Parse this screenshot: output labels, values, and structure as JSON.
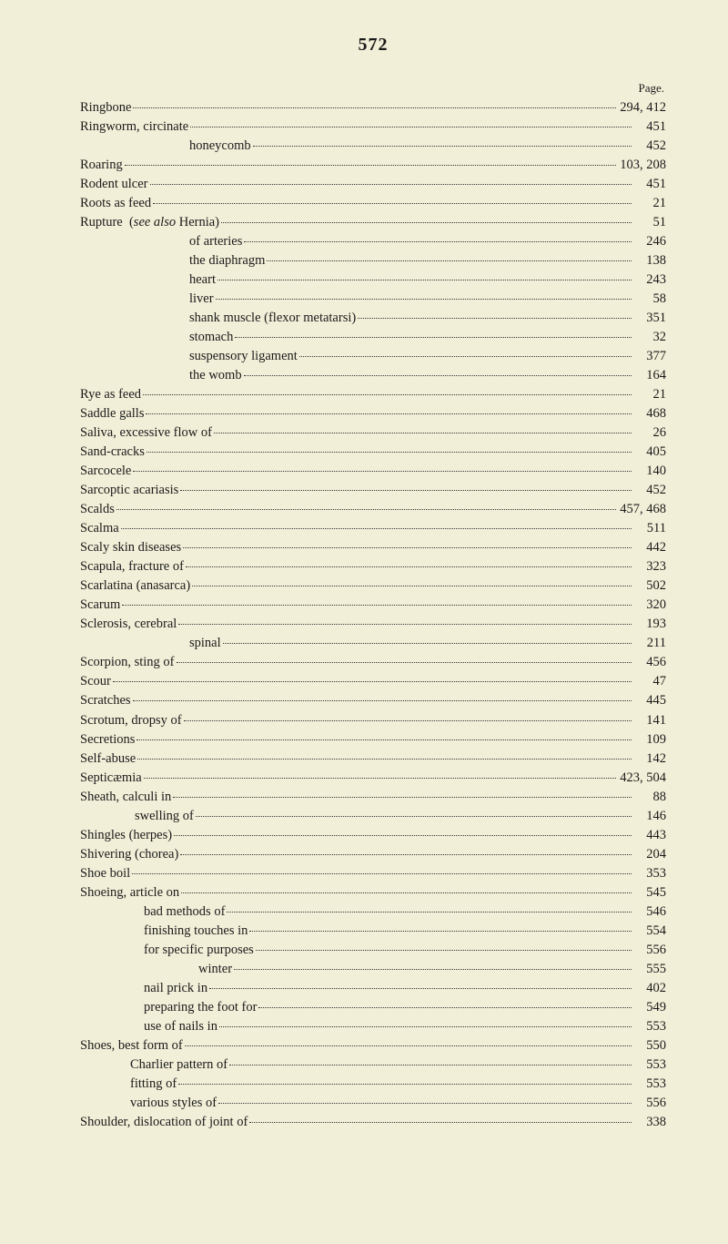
{
  "page_number": "572",
  "page_label": "Page.",
  "background_color": "#f2efd8",
  "text_color": "#1a1a1a",
  "font_family": "Georgia, Times New Roman, serif",
  "base_fontsize": 14.5,
  "entries": [
    {
      "label": "Ringbone",
      "page": "294, 412",
      "indent": 0
    },
    {
      "label": "Ringworm, circinate",
      "page": "451",
      "indent": 0
    },
    {
      "label": "honeycomb",
      "page": "452",
      "indent": 2
    },
    {
      "label": "Roaring",
      "page": "103, 208",
      "indent": 0
    },
    {
      "label": "Rodent ulcer",
      "page": "451",
      "indent": 0
    },
    {
      "label": "Roots as feed",
      "page": "21",
      "indent": 0
    },
    {
      "label": "Rupture  (see also Hernia)",
      "page": "51",
      "indent": 0,
      "italic_segment": "see also"
    },
    {
      "label": "of arteries",
      "page": "246",
      "indent": 2
    },
    {
      "label": "the diaphragm",
      "page": "138",
      "indent": 2
    },
    {
      "label": "heart",
      "page": "243",
      "indent": 2
    },
    {
      "label": "liver",
      "page": "58",
      "indent": 2
    },
    {
      "label": "shank muscle (flexor metatarsi)",
      "page": "351",
      "indent": 2
    },
    {
      "label": "stomach",
      "page": "32",
      "indent": 2
    },
    {
      "label": "suspensory ligament",
      "page": "377",
      "indent": 2
    },
    {
      "label": "the womb",
      "page": "164",
      "indent": 2
    },
    {
      "label": "Rye as feed",
      "page": "21",
      "indent": 0
    },
    {
      "label": "Saddle galls",
      "page": "468",
      "indent": 0
    },
    {
      "label": "Saliva, excessive flow of",
      "page": "26",
      "indent": 0
    },
    {
      "label": "Sand-cracks",
      "page": "405",
      "indent": 0
    },
    {
      "label": "Sarcocele",
      "page": "140",
      "indent": 0
    },
    {
      "label": "Sarcoptic acariasis",
      "page": "452",
      "indent": 0
    },
    {
      "label": "Scalds",
      "page": "457, 468",
      "indent": 0
    },
    {
      "label": "Scalma",
      "page": "511",
      "indent": 0
    },
    {
      "label": "Scaly skin diseases",
      "page": "442",
      "indent": 0
    },
    {
      "label": "Scapula, fracture of",
      "page": "323",
      "indent": 0
    },
    {
      "label": "Scarlatina (anasarca)",
      "page": "502",
      "indent": 0
    },
    {
      "label": "Scarum",
      "page": "320",
      "indent": 0
    },
    {
      "label": "Sclerosis, cerebral",
      "page": "193",
      "indent": 0
    },
    {
      "label": "spinal",
      "page": "211",
      "indent": 2
    },
    {
      "label": "Scorpion, sting of",
      "page": "456",
      "indent": 0
    },
    {
      "label": "Scour",
      "page": "47",
      "indent": 0
    },
    {
      "label": "Scratches",
      "page": "445",
      "indent": 0
    },
    {
      "label": "Scrotum, dropsy of",
      "page": "141",
      "indent": 0
    },
    {
      "label": "Secretions",
      "page": "109",
      "indent": 0
    },
    {
      "label": "Self-abuse",
      "page": "142",
      "indent": 0
    },
    {
      "label": "Septicæmia",
      "page": "423, 504",
      "indent": 0
    },
    {
      "label": "Sheath, calculi in",
      "page": "88",
      "indent": 0
    },
    {
      "label": "swelling of",
      "page": "146",
      "indent": 1
    },
    {
      "label": "Shingles (herpes)",
      "page": "443",
      "indent": 0
    },
    {
      "label": "Shivering (chorea)",
      "page": "204",
      "indent": 0
    },
    {
      "label": "Shoe boil",
      "page": "353",
      "indent": 0
    },
    {
      "label": "Shoeing, article on",
      "page": "545",
      "indent": 0
    },
    {
      "label": "bad methods of",
      "page": "546",
      "indent": "shoeing-1"
    },
    {
      "label": "finishing touches in",
      "page": "554",
      "indent": "shoeing-1"
    },
    {
      "label": "for specific purposes",
      "page": "556",
      "indent": "shoeing-1"
    },
    {
      "label": "winter",
      "page": "555",
      "indent": "shoeing-2"
    },
    {
      "label": "nail prick in",
      "page": "402",
      "indent": "shoeing-1"
    },
    {
      "label": "preparing the foot for",
      "page": "549",
      "indent": "shoeing-1"
    },
    {
      "label": "use of nails in",
      "page": "553",
      "indent": "shoeing-1"
    },
    {
      "label": "Shoes, best form of",
      "page": "550",
      "indent": 0
    },
    {
      "label": "Charlier pattern of",
      "page": "553",
      "indent": "shoes-1"
    },
    {
      "label": "fitting of",
      "page": "553",
      "indent": "shoes-1"
    },
    {
      "label": "various styles of",
      "page": "556",
      "indent": "shoes-1"
    },
    {
      "label": "Shoulder, dislocation of joint of",
      "page": "338",
      "indent": 0
    }
  ]
}
